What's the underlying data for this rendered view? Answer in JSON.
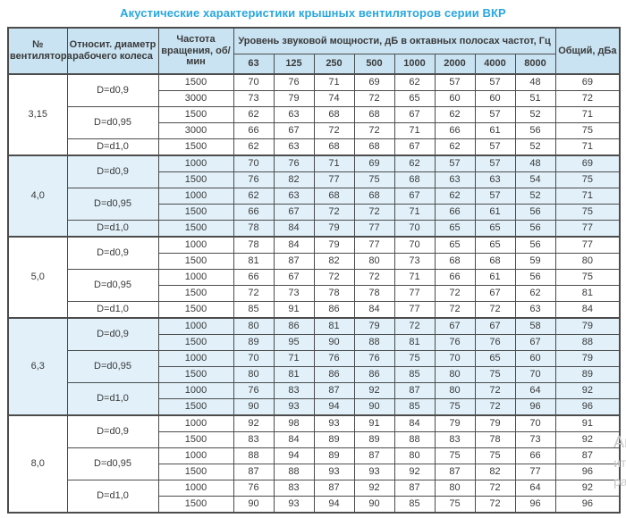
{
  "title": "Акустические характеристики крышных вентиляторов серии ВКР",
  "colors": {
    "title_blue": "#29a7df",
    "header_bg": "#c9e3f2",
    "shaded_section_bg": "#e1f0f9",
    "border": "#4c4c4c",
    "text": "#3a3a3a"
  },
  "watermark": {
    "lines": [
      "Ак",
      "ит",
      "ра"
    ]
  },
  "table": {
    "headers": {
      "fan_number": "№ вентилятора",
      "diameter": "Относит. диаметр рабочего колеса",
      "speed": "Частота вращения, об/мин",
      "spl_group": "Уровень звуковой мощности, дБ в октавных полосах частот, Гц",
      "frequencies": [
        "63",
        "125",
        "250",
        "500",
        "1000",
        "2000",
        "4000",
        "8000"
      ],
      "total": "Общий, дБа"
    },
    "sections": [
      {
        "fan": "3,15",
        "shaded": false,
        "groups": [
          {
            "diameter": "D=d0,9",
            "rows": [
              {
                "speed": "1500",
                "values": [
                  70,
                  76,
                  71,
                  69,
                  62,
                  57,
                  57,
                  48
                ],
                "total": 69
              },
              {
                "speed": "3000",
                "values": [
                  73,
                  79,
                  74,
                  72,
                  65,
                  60,
                  60,
                  51
                ],
                "total": 72
              }
            ]
          },
          {
            "diameter": "D=d0,95",
            "rows": [
              {
                "speed": "1500",
                "values": [
                  62,
                  63,
                  68,
                  68,
                  67,
                  62,
                  57,
                  52
                ],
                "total": 71
              },
              {
                "speed": "3000",
                "values": [
                  66,
                  67,
                  72,
                  72,
                  71,
                  66,
                  61,
                  56
                ],
                "total": 75
              }
            ]
          },
          {
            "diameter": "D=d1,0",
            "rows": [
              {
                "speed": "1500",
                "values": [
                  62,
                  63,
                  68,
                  68,
                  67,
                  62,
                  57,
                  52
                ],
                "total": 71
              }
            ]
          }
        ]
      },
      {
        "fan": "4,0",
        "shaded": true,
        "groups": [
          {
            "diameter": "D=d0,9",
            "rows": [
              {
                "speed": "1000",
                "values": [
                  70,
                  76,
                  71,
                  69,
                  62,
                  57,
                  57,
                  48
                ],
                "total": 69
              },
              {
                "speed": "1500",
                "values": [
                  76,
                  82,
                  77,
                  75,
                  68,
                  63,
                  63,
                  54
                ],
                "total": 75
              }
            ]
          },
          {
            "diameter": "D=d0,95",
            "rows": [
              {
                "speed": "1000",
                "values": [
                  62,
                  63,
                  68,
                  68,
                  67,
                  62,
                  57,
                  52
                ],
                "total": 71
              },
              {
                "speed": "1500",
                "values": [
                  66,
                  67,
                  72,
                  72,
                  71,
                  66,
                  61,
                  56
                ],
                "total": 75
              }
            ]
          },
          {
            "diameter": "D=d1,0",
            "rows": [
              {
                "speed": "1500",
                "values": [
                  78,
                  84,
                  79,
                  77,
                  70,
                  65,
                  65,
                  56
                ],
                "total": 77
              }
            ]
          }
        ]
      },
      {
        "fan": "5,0",
        "shaded": false,
        "groups": [
          {
            "diameter": "D=d0,9",
            "rows": [
              {
                "speed": "1000",
                "values": [
                  78,
                  84,
                  79,
                  77,
                  70,
                  65,
                  65,
                  56
                ],
                "total": 77
              },
              {
                "speed": "1500",
                "values": [
                  81,
                  87,
                  82,
                  80,
                  73,
                  68,
                  68,
                  59
                ],
                "total": 80
              }
            ]
          },
          {
            "diameter": "D=d0,95",
            "rows": [
              {
                "speed": "1000",
                "values": [
                  66,
                  67,
                  72,
                  72,
                  71,
                  66,
                  61,
                  56
                ],
                "total": 75
              },
              {
                "speed": "1500",
                "values": [
                  72,
                  73,
                  78,
                  78,
                  77,
                  72,
                  67,
                  62
                ],
                "total": 81
              }
            ]
          },
          {
            "diameter": "D=d1,0",
            "rows": [
              {
                "speed": "1500",
                "values": [
                  85,
                  91,
                  86,
                  84,
                  77,
                  72,
                  72,
                  63
                ],
                "total": 84
              }
            ]
          }
        ]
      },
      {
        "fan": "6,3",
        "shaded": true,
        "groups": [
          {
            "diameter": "D=d0,9",
            "rows": [
              {
                "speed": "1000",
                "values": [
                  80,
                  86,
                  81,
                  79,
                  72,
                  67,
                  67,
                  58
                ],
                "total": 79
              },
              {
                "speed": "1500",
                "values": [
                  89,
                  95,
                  90,
                  88,
                  81,
                  76,
                  76,
                  67
                ],
                "total": 88
              }
            ]
          },
          {
            "diameter": "D=d0,95",
            "rows": [
              {
                "speed": "1000",
                "values": [
                  70,
                  71,
                  76,
                  76,
                  75,
                  70,
                  65,
                  60
                ],
                "total": 79
              },
              {
                "speed": "1500",
                "values": [
                  80,
                  81,
                  86,
                  86,
                  85,
                  80,
                  75,
                  70
                ],
                "total": 89
              }
            ]
          },
          {
            "diameter": "D=d1,0",
            "rows": [
              {
                "speed": "1000",
                "values": [
                  76,
                  83,
                  87,
                  92,
                  87,
                  80,
                  72,
                  64
                ],
                "total": 92
              },
              {
                "speed": "1500",
                "values": [
                  90,
                  93,
                  94,
                  90,
                  85,
                  75,
                  72,
                  96
                ],
                "total": 96
              }
            ]
          }
        ]
      },
      {
        "fan": "8,0",
        "shaded": false,
        "groups": [
          {
            "diameter": "D=d0,9",
            "rows": [
              {
                "speed": "1000",
                "values": [
                  92,
                  98,
                  93,
                  91,
                  84,
                  79,
                  79,
                  70
                ],
                "total": 91
              },
              {
                "speed": "1500",
                "values": [
                  83,
                  84,
                  89,
                  89,
                  88,
                  83,
                  78,
                  73
                ],
                "total": 92
              }
            ]
          },
          {
            "diameter": "D=d0,95",
            "rows": [
              {
                "speed": "1000",
                "values": [
                  88,
                  94,
                  89,
                  87,
                  80,
                  75,
                  75,
                  66
                ],
                "total": 87
              },
              {
                "speed": "1500",
                "values": [
                  87,
                  88,
                  93,
                  93,
                  92,
                  87,
                  82,
                  77
                ],
                "total": 96
              }
            ]
          },
          {
            "diameter": "D=d1,0",
            "rows": [
              {
                "speed": "1000",
                "values": [
                  76,
                  83,
                  87,
                  92,
                  87,
                  80,
                  72,
                  64
                ],
                "total": 92
              },
              {
                "speed": "1500",
                "values": [
                  90,
                  93,
                  94,
                  90,
                  85,
                  75,
                  72,
                  96
                ],
                "total": 96
              }
            ]
          }
        ]
      }
    ]
  }
}
